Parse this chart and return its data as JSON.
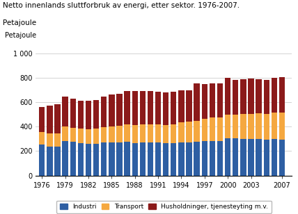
{
  "title_line1": "Netto innenlands sluttforbruk av energi, etter sektor. 1976-2007.",
  "title_line2": "Petajoule",
  "ylim": [
    0,
    1000
  ],
  "yticks": [
    0,
    200,
    400,
    600,
    800,
    1000
  ],
  "ytick_labels": [
    "0",
    "200",
    "400",
    "600",
    "800",
    "1 000"
  ],
  "years": [
    1976,
    1977,
    1978,
    1979,
    1980,
    1981,
    1982,
    1983,
    1984,
    1985,
    1986,
    1987,
    1988,
    1989,
    1990,
    1991,
    1992,
    1993,
    1994,
    1995,
    1996,
    1997,
    1998,
    1999,
    2000,
    2001,
    2002,
    2003,
    2004,
    2005,
    2006,
    2007
  ],
  "industri": [
    252,
    238,
    237,
    285,
    275,
    265,
    258,
    260,
    270,
    272,
    272,
    275,
    265,
    270,
    272,
    272,
    265,
    265,
    270,
    270,
    275,
    285,
    285,
    280,
    305,
    305,
    302,
    300,
    302,
    295,
    298,
    295
  ],
  "transport": [
    105,
    108,
    110,
    118,
    118,
    118,
    120,
    122,
    128,
    132,
    138,
    145,
    148,
    148,
    148,
    148,
    148,
    152,
    165,
    172,
    175,
    182,
    192,
    195,
    195,
    195,
    200,
    205,
    210,
    210,
    215,
    218
  ],
  "husholdninger": [
    205,
    228,
    235,
    245,
    235,
    232,
    237,
    238,
    250,
    258,
    260,
    275,
    278,
    272,
    270,
    268,
    268,
    268,
    265,
    258,
    305,
    282,
    280,
    280,
    300,
    285,
    290,
    292,
    280,
    280,
    285,
    295
  ],
  "color_industri": "#2E5FA3",
  "color_transport": "#F5A840",
  "color_husholdninger": "#8B1A1A",
  "legend_labels": [
    "Industri",
    "Transport",
    "Husholdninger, tjenesteyting m.v."
  ],
  "grid_color": "#cccccc",
  "xticks": [
    1976,
    1979,
    1982,
    1985,
    1988,
    1991,
    1994,
    1997,
    2000,
    2003,
    2007
  ],
  "bar_width": 0.75,
  "title_fontsize": 7.5,
  "tick_fontsize": 7.0,
  "legend_fontsize": 6.5
}
